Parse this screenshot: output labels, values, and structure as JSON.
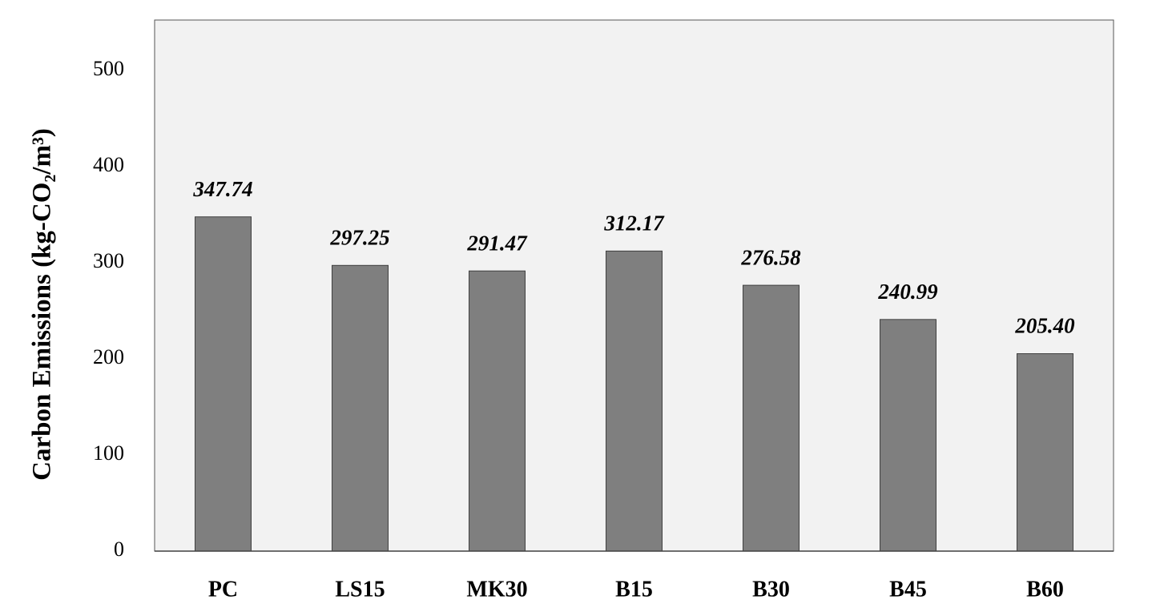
{
  "chart_data": {
    "type": "bar",
    "y_label": "Carbon Emissions (kg-CO₂/m³)",
    "categories": [
      "PC",
      "LS15",
      "MK30",
      "B15",
      "B30",
      "B45",
      "B60"
    ],
    "values": [
      347.74,
      297.25,
      291.47,
      312.17,
      276.58,
      240.99,
      205.4
    ],
    "value_labels": [
      "347.74",
      "297.25",
      "291.47",
      "312.17",
      "276.58",
      "240.99",
      "205.40"
    ],
    "color": "#7f7f7f",
    "ylim": [
      0,
      550
    ],
    "yticks": [
      0,
      100,
      200,
      300,
      400,
      500
    ],
    "grid": false
  }
}
